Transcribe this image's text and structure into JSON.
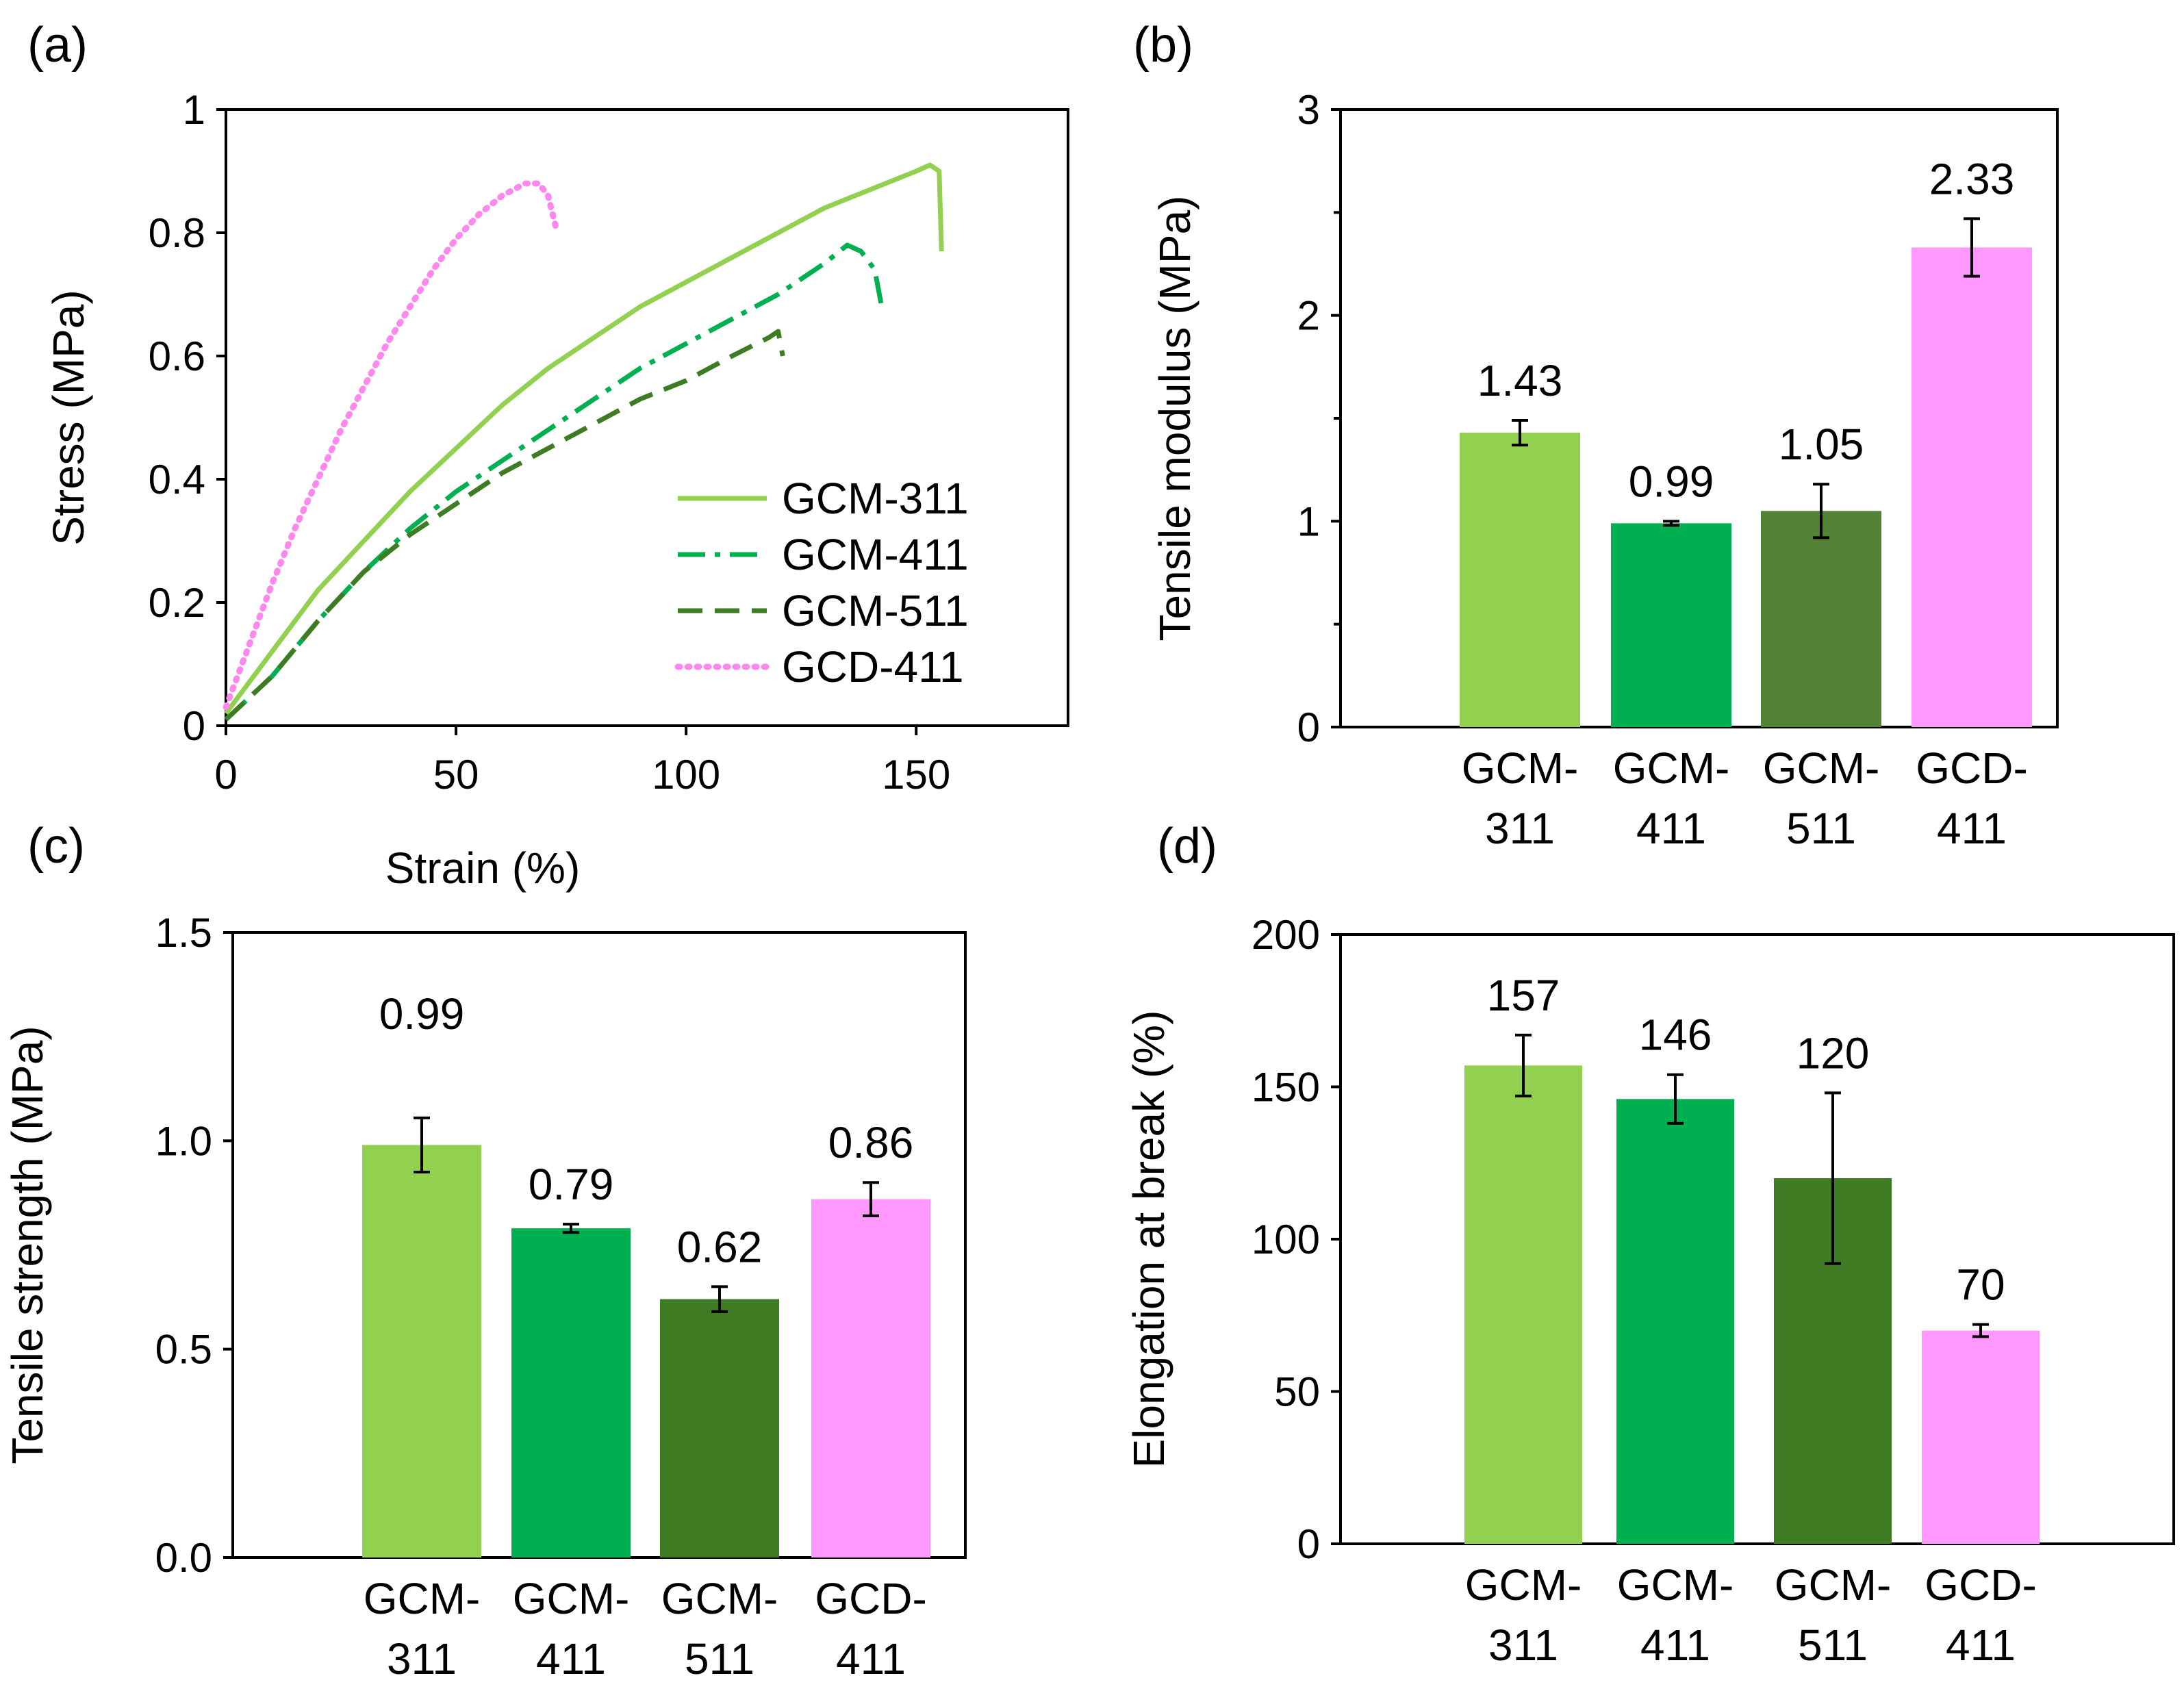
{
  "chart_data": [
    {
      "id": "a",
      "panel_label": "(a)",
      "type": "line",
      "xlabel": "Strain (%)",
      "ylabel": "Stress (MPa)",
      "xlim": [
        0,
        183
      ],
      "ylim": [
        0,
        1
      ],
      "xticks": [
        "0",
        "50",
        "100",
        "150"
      ],
      "xtick_values": [
        0,
        50,
        100,
        150
      ],
      "yticks": [
        "0",
        "0.2",
        "0.4",
        "0.6",
        "0.8",
        "1"
      ],
      "ytick_values": [
        0,
        0.2,
        0.4,
        0.6,
        0.8,
        1
      ],
      "legend_position": "lower-right",
      "series": [
        {
          "name": "GCM-311",
          "color": "#92d050",
          "style": "solid",
          "x": [
            0,
            10,
            20,
            30,
            40,
            50,
            60,
            70,
            80,
            90,
            100,
            110,
            120,
            130,
            140,
            150,
            153,
            155,
            155.5
          ],
          "y": [
            0.02,
            0.12,
            0.22,
            0.3,
            0.38,
            0.45,
            0.52,
            0.58,
            0.63,
            0.68,
            0.72,
            0.76,
            0.8,
            0.84,
            0.87,
            0.9,
            0.91,
            0.9,
            0.77
          ]
        },
        {
          "name": "GCM-411",
          "color": "#00b050",
          "style": "dashdot",
          "x": [
            0,
            10,
            20,
            30,
            40,
            50,
            60,
            70,
            80,
            90,
            100,
            110,
            120,
            130,
            135,
            138,
            141,
            142.5
          ],
          "y": [
            0.01,
            0.08,
            0.17,
            0.25,
            0.32,
            0.38,
            0.43,
            0.48,
            0.53,
            0.58,
            0.62,
            0.66,
            0.7,
            0.75,
            0.78,
            0.77,
            0.74,
            0.68
          ]
        },
        {
          "name": "GCM-511",
          "color": "#3e7c24",
          "style": "dashed",
          "x": [
            0,
            10,
            20,
            30,
            40,
            50,
            60,
            70,
            80,
            90,
            100,
            110,
            118,
            120,
            121
          ],
          "y": [
            0.01,
            0.08,
            0.17,
            0.25,
            0.31,
            0.36,
            0.41,
            0.45,
            0.49,
            0.53,
            0.56,
            0.6,
            0.63,
            0.64,
            0.6
          ]
        },
        {
          "name": "GCD-411",
          "color": "#ff88ee",
          "style": "dotted",
          "x": [
            0,
            5,
            10,
            15,
            20,
            25,
            30,
            35,
            40,
            45,
            50,
            55,
            60,
            65,
            68,
            70,
            72
          ],
          "y": [
            0.03,
            0.13,
            0.23,
            0.32,
            0.4,
            0.48,
            0.55,
            0.62,
            0.68,
            0.74,
            0.79,
            0.83,
            0.86,
            0.88,
            0.88,
            0.86,
            0.8
          ]
        }
      ]
    },
    {
      "id": "b",
      "panel_label": "(b)",
      "type": "bar",
      "ylabel": "Tensile modulus (MPa)",
      "ylim": [
        0,
        3
      ],
      "yticks": [
        "0",
        "1",
        "2",
        "3"
      ],
      "ytick_values": [
        0,
        1,
        2,
        3
      ],
      "minor_ytick_values": [
        0.5,
        1.5,
        2.5
      ],
      "categories": [
        [
          "GCM-",
          "311"
        ],
        [
          "GCM-",
          "411"
        ],
        [
          "GCM-",
          "511"
        ],
        [
          "GCD-",
          "411"
        ]
      ],
      "values": [
        1.43,
        0.99,
        1.05,
        2.33
      ],
      "errors": [
        0.06,
        0.01,
        0.13,
        0.14
      ],
      "value_labels": [
        "1.43",
        "0.99",
        "1.05",
        "2.33"
      ],
      "colors": [
        "#92d050",
        "#00b050",
        "#538135",
        "#ff99ff"
      ]
    },
    {
      "id": "c",
      "panel_label": "(c)",
      "type": "bar",
      "ylabel": "Tensile strength (MPa)",
      "ylim": [
        0,
        1.5
      ],
      "yticks": [
        "0.0",
        "0.5",
        "1.0",
        "1.5"
      ],
      "ytick_values": [
        0,
        0.5,
        1.0,
        1.5
      ],
      "categories": [
        [
          "GCM-",
          "311"
        ],
        [
          "GCM-",
          "411"
        ],
        [
          "GCM-",
          "511"
        ],
        [
          "GCD-",
          "411"
        ]
      ],
      "values": [
        0.99,
        0.79,
        0.62,
        0.86
      ],
      "errors": [
        0.065,
        0.01,
        0.03,
        0.04
      ],
      "value_labels": [
        "0.99",
        "0.79",
        "0.62",
        "0.86"
      ],
      "label_offsets": [
        0.23,
        0.05,
        0.05,
        0.05
      ],
      "colors": [
        "#92d050",
        "#00b050",
        "#3e7b22",
        "#ff99ff"
      ]
    },
    {
      "id": "d",
      "panel_label": "(d)",
      "type": "bar",
      "ylabel": "Elongation at break (%)",
      "ylim": [
        0,
        200
      ],
      "yticks": [
        "0",
        "50",
        "100",
        "150",
        "200"
      ],
      "ytick_values": [
        0,
        50,
        100,
        150,
        200
      ],
      "categories": [
        [
          "GCM-",
          "311"
        ],
        [
          "GCM-",
          "411"
        ],
        [
          "GCM-",
          "511"
        ],
        [
          "GCD-",
          "411"
        ]
      ],
      "values": [
        157,
        146,
        120,
        70
      ],
      "errors": [
        10,
        8,
        28,
        2
      ],
      "value_labels": [
        "157",
        "146",
        "120",
        "70"
      ],
      "colors": [
        "#92d050",
        "#00b050",
        "#3e7b22",
        "#ff99ff"
      ]
    }
  ]
}
